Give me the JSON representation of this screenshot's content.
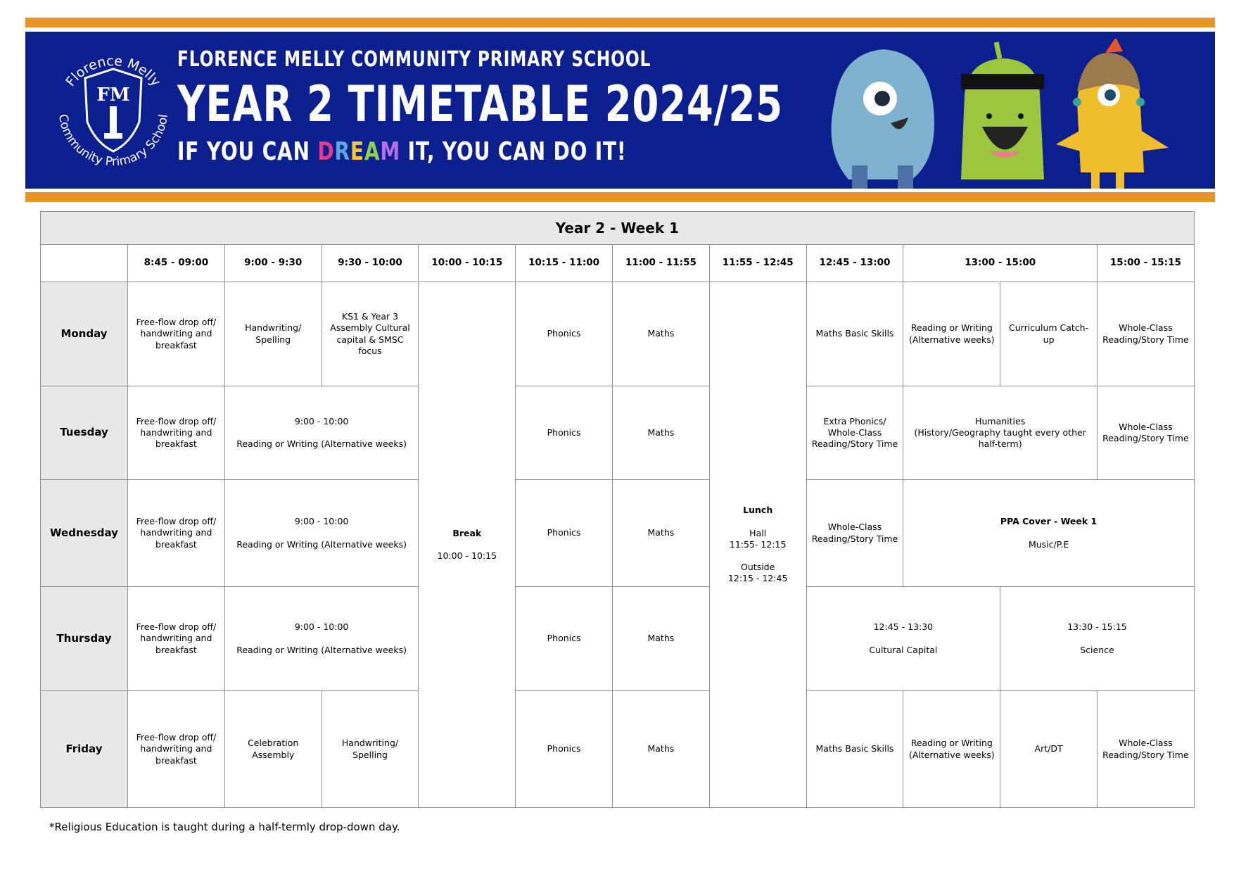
{
  "banner": {
    "school_name": "FLORENCE MELLY COMMUNITY PRIMARY SCHOOL",
    "title": "YEAR 2 TIMETABLE 2024/25",
    "motto_before": "IF YOU CAN ",
    "motto_dream": [
      "D",
      "R",
      "E",
      "A",
      "M"
    ],
    "motto_dream_colors": [
      "#e8388a",
      "#5aa7e0",
      "#f3c530",
      "#8fd14f",
      "#b26fe6"
    ],
    "motto_after": " IT, YOU CAN DO IT!",
    "logo_text_top": "Florence Melly",
    "logo_text_bottom": "Community Primary School",
    "logo_monogram": "FM",
    "colors": {
      "navy": "#0c1f8f",
      "orange": "#e69424"
    }
  },
  "timetable": {
    "title": "Year 2 - Week 1",
    "headers": [
      "8:45 - 09:00",
      "9:00 - 9:30",
      "9:30 - 10:00",
      "10:00 - 10:15",
      "10:15 - 11:00",
      "11:00 - 11:55",
      "11:55 - 12:45",
      "12:45 - 13:00",
      "13:00 - 15:00",
      "15:00 - 15:15"
    ],
    "days": [
      "Monday",
      "Tuesday",
      "Wednesday",
      "Thursday",
      "Friday"
    ],
    "break": {
      "label": "Break",
      "time": "10:00 - 10:15"
    },
    "lunch": {
      "label": "Lunch",
      "hall": "Hall",
      "hall_time": "11:55- 12:15",
      "outside": "Outside",
      "outside_time": "12:15 - 12:45"
    },
    "monday": {
      "c1": "Free-flow drop off/ handwriting and breakfast",
      "c2": "Handwriting/ Spelling",
      "c3": "KS1 & Year 3 Assembly Cultural capital & SMSC focus",
      "c5": "Phonics",
      "c6": "Maths",
      "c8": "Maths Basic Skills",
      "c9": "Reading or Writing (Alternative weeks)",
      "c10": "Curriculum Catch-up",
      "c11": "Whole-Class Reading/Story Time"
    },
    "tuesday": {
      "c1": "Free-flow drop off/ handwriting and breakfast",
      "c2_time": "9:00 - 10:00",
      "c2": "Reading or Writing (Alternative weeks)",
      "c5": "Phonics",
      "c6": "Maths",
      "c8": "Extra Phonics/ Whole-Class Reading/Story Time",
      "c9": "Humanities",
      "c9_note": "(History/Geography taught every other half-term)",
      "c11": "Whole-Class Reading/Story Time"
    },
    "wednesday": {
      "c1": "Free-flow drop off/ handwriting and breakfast",
      "c2_time": "9:00 - 10:00",
      "c2": "Reading or Writing (Alternative weeks)",
      "c5": "Phonics",
      "c6": "Maths",
      "c8": "Whole-Class Reading/Story Time",
      "c9": "PPA Cover - Week 1",
      "c9_note": "Music/P.E"
    },
    "thursday": {
      "c1": "Free-flow drop off/ handwriting and breakfast",
      "c2_time": "9:00 - 10:00",
      "c2": "Reading or Writing (Alternative weeks)",
      "c5": "Phonics",
      "c6": "Maths",
      "c8_time": "12:45 - 13:30",
      "c8": "Cultural Capital",
      "c10_time": "13:30 - 15:15",
      "c10": "Science"
    },
    "friday": {
      "c1": "Free-flow drop off/ handwriting and breakfast",
      "c2": "Celebration Assembly",
      "c3": "Handwriting/ Spelling",
      "c5": "Phonics",
      "c6": "Maths",
      "c8": "Maths Basic Skills",
      "c9": "Reading or Writing (Alternative weeks)",
      "c10": "Art/DT",
      "c11": "Whole-Class Reading/Story Time"
    }
  },
  "footnote": "*Religious Education is taught during a half-termly drop-down day."
}
